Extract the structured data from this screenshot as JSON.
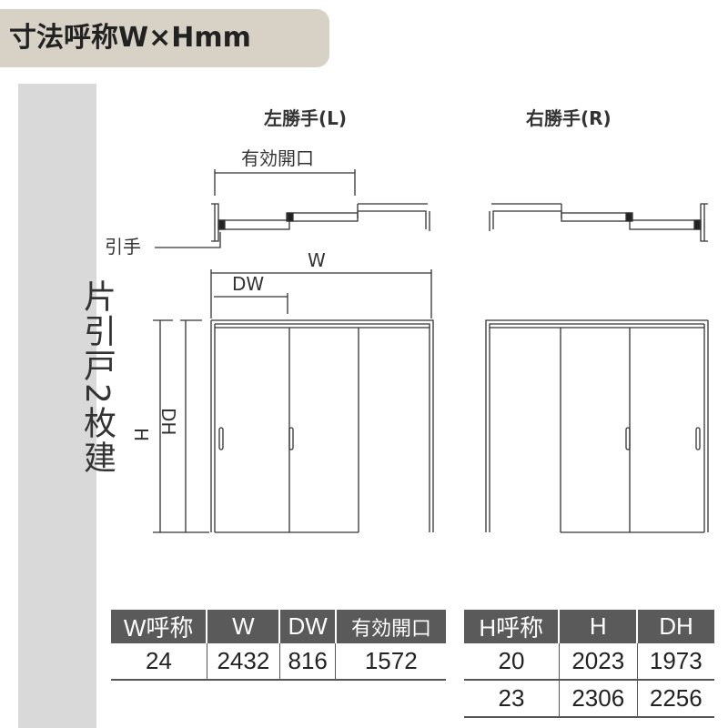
{
  "header": {
    "title": "寸法呼称W×Hmm"
  },
  "sidebar": {
    "label": "片引戸2枚建"
  },
  "diagram": {
    "left_title": "左勝手(L)",
    "right_title": "右勝手(R)",
    "opening_label": "有効開口",
    "handle_label": "引手",
    "w_label": "W",
    "dw_label": "DW",
    "h_label": "H",
    "dh_label": "DH"
  },
  "width_table": {
    "headers": [
      "W呼称",
      "W",
      "DW",
      "有効開口"
    ],
    "rows": [
      [
        "24",
        "2432",
        "816",
        "1572"
      ]
    ]
  },
  "height_table": {
    "headers": [
      "H呼称",
      "H",
      "DH"
    ],
    "rows": [
      [
        "20",
        "2023",
        "1973"
      ],
      [
        "23",
        "2306",
        "2256"
      ]
    ]
  }
}
